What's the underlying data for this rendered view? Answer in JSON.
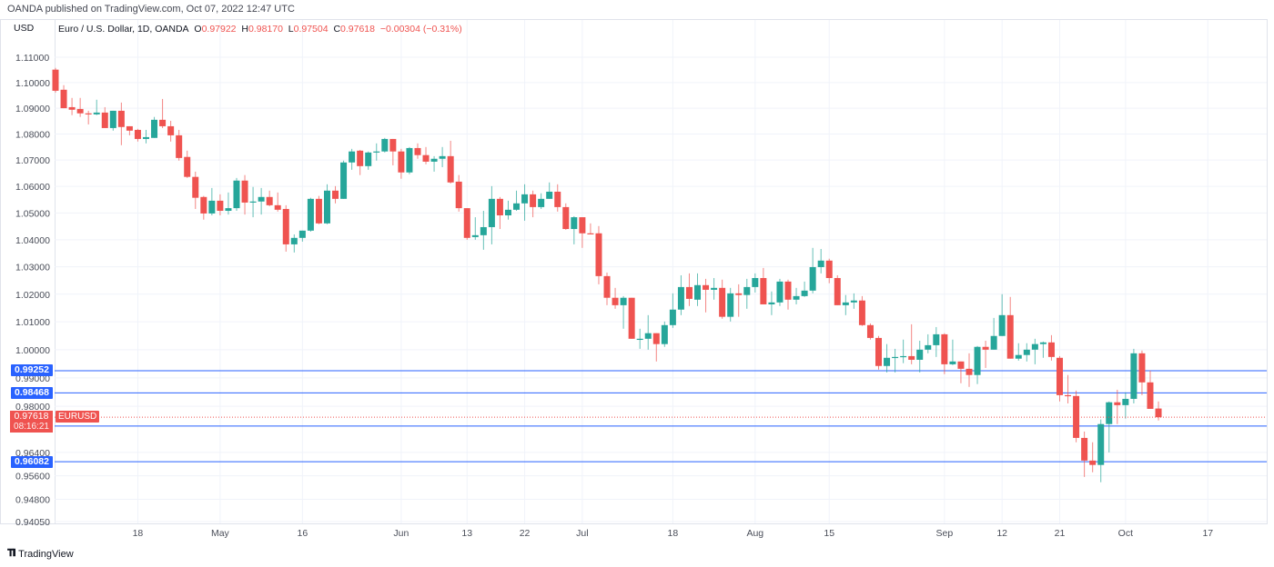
{
  "header": {
    "published": "OANDA published on TradingView.com, Oct 07, 2022 12:47 UTC"
  },
  "legend": {
    "currency": "USD",
    "symbol_desc": "Euro / U.S. Dollar, 1D, OANDA",
    "o_label": "O",
    "o": "0.97922",
    "h_label": "H",
    "h": "0.98170",
    "l_label": "L",
    "l": "0.97504",
    "c_label": "C",
    "c": "0.97618",
    "change": "−0.00304 (−0.31%)"
  },
  "price_lines": [
    {
      "price": 0.99252,
      "label": "0.99252"
    },
    {
      "price": 0.98468,
      "label": "0.98468"
    },
    {
      "price": 0.97313,
      "label": "0.97313"
    },
    {
      "price": 0.96082,
      "label": "0.96082"
    }
  ],
  "current": {
    "price": 0.97618,
    "label": "0.97618",
    "countdown": "08:16:21",
    "symbol": "EURUSD"
  },
  "footer": {
    "brand": "TradingView"
  },
  "colors": {
    "up": "#26a69a",
    "down": "#ef5350",
    "line": "#2962ff"
  },
  "chart_data": {
    "type": "candlestick",
    "title": "Euro / U.S. Dollar, 1D, OANDA",
    "scale": "log",
    "ylim": [
      0.9405,
      1.11
    ],
    "y_ticks": [
      "1.11000",
      "1.10000",
      "1.09000",
      "1.08000",
      "1.07000",
      "1.06000",
      "1.05000",
      "1.04000",
      "1.03000",
      "1.02000",
      "1.01000",
      "1.00000",
      "0.99000",
      "0.98000",
      "0.96400",
      "0.95600",
      "0.94800",
      "0.94050"
    ],
    "x_ticks": [
      {
        "label": "18",
        "index": 11
      },
      {
        "label": "May",
        "index": 21
      },
      {
        "label": "16",
        "index": 31
      },
      {
        "label": "Jun",
        "index": 43
      },
      {
        "label": "13",
        "index": 51
      },
      {
        "label": "22",
        "index": 58
      },
      {
        "label": "Jul",
        "index": 65
      },
      {
        "label": "18",
        "index": 76
      },
      {
        "label": "Aug",
        "index": 86
      },
      {
        "label": "15",
        "index": 95
      },
      {
        "label": "Sep",
        "index": 109
      },
      {
        "label": "12",
        "index": 116
      },
      {
        "label": "21",
        "index": 123
      },
      {
        "label": "Oct",
        "index": 131
      },
      {
        "label": "17",
        "index": 141
      }
    ],
    "x_range": [
      1,
      148
    ],
    "ohlc_order": [
      "open",
      "high",
      "low",
      "close"
    ],
    "candles": [
      [
        1.1051,
        1.1058,
        1.0961,
        1.0968
      ],
      [
        1.0972,
        1.099,
        1.09,
        1.09
      ],
      [
        1.0904,
        1.094,
        1.0873,
        1.0894
      ],
      [
        1.0897,
        1.094,
        1.0866,
        1.088
      ],
      [
        1.088,
        1.089,
        1.0837,
        1.0876
      ],
      [
        1.0876,
        1.0933,
        1.0873,
        1.0883
      ],
      [
        1.0883,
        1.0904,
        1.0823,
        1.0823
      ],
      [
        1.0823,
        1.089,
        1.0813,
        1.089
      ],
      [
        1.089,
        1.0922,
        1.0757,
        1.0827
      ],
      [
        1.083,
        1.083,
        1.0795,
        1.0813
      ],
      [
        1.0816,
        1.082,
        1.0771,
        1.0781
      ],
      [
        1.0781,
        1.0816,
        1.0764,
        1.0788
      ],
      [
        1.0785,
        1.0866,
        1.0785,
        1.0855
      ],
      [
        1.0855,
        1.0936,
        1.0823,
        1.083
      ],
      [
        1.083,
        1.0851,
        1.0771,
        1.0795
      ],
      [
        1.0795,
        1.0816,
        1.0698,
        1.0708
      ],
      [
        1.0712,
        1.0736,
        1.0632,
        1.0636
      ],
      [
        1.0636,
        1.0656,
        1.0515,
        1.0557
      ],
      [
        1.056,
        1.0564,
        1.0475,
        1.0498
      ],
      [
        1.0498,
        1.0594,
        1.0491,
        1.0546
      ],
      [
        1.0546,
        1.057,
        1.0491,
        1.0508
      ],
      [
        1.0508,
        1.0577,
        1.0494,
        1.0518
      ],
      [
        1.0518,
        1.0632,
        1.0508,
        1.0622
      ],
      [
        1.0622,
        1.0643,
        1.0494,
        1.0539
      ],
      [
        1.0539,
        1.0598,
        1.0484,
        1.0543
      ],
      [
        1.0543,
        1.0594,
        1.0494,
        1.056
      ],
      [
        1.056,
        1.0584,
        1.0525,
        1.0529
      ],
      [
        1.0529,
        1.0577,
        1.0505,
        1.0512
      ],
      [
        1.0515,
        1.0529,
        1.0356,
        1.0383
      ],
      [
        1.0383,
        1.042,
        1.0353,
        1.0407
      ],
      [
        1.0407,
        1.0434,
        1.0393,
        1.0434
      ],
      [
        1.0434,
        1.0557,
        1.043,
        1.0553
      ],
      [
        1.0553,
        1.0564,
        1.0458,
        1.0461
      ],
      [
        1.0461,
        1.0608,
        1.0458,
        1.0584
      ],
      [
        1.0584,
        1.0601,
        1.0536,
        1.0553
      ],
      [
        1.0553,
        1.0698,
        1.0553,
        1.0691
      ],
      [
        1.0691,
        1.0743,
        1.0663,
        1.0733
      ],
      [
        1.0736,
        1.0739,
        1.0643,
        1.0677
      ],
      [
        1.0677,
        1.0733,
        1.0663,
        1.0729
      ],
      [
        1.0729,
        1.0764,
        1.0698,
        1.0733
      ],
      [
        1.0733,
        1.0785,
        1.0729,
        1.0781
      ],
      [
        1.0781,
        1.0781,
        1.068,
        1.0733
      ],
      [
        1.0733,
        1.0743,
        1.0629,
        1.0653
      ],
      [
        1.0653,
        1.075,
        1.0646,
        1.0746
      ],
      [
        1.0746,
        1.0764,
        1.0705,
        1.0719
      ],
      [
        1.0719,
        1.075,
        1.0684,
        1.0694
      ],
      [
        1.0694,
        1.0715,
        1.0656,
        1.0705
      ],
      [
        1.0705,
        1.075,
        1.0673,
        1.0715
      ],
      [
        1.0715,
        1.0774,
        1.0611,
        1.0615
      ],
      [
        1.0618,
        1.0643,
        1.0505,
        1.0518
      ],
      [
        1.0518,
        1.0518,
        1.04,
        1.0407
      ],
      [
        1.041,
        1.0484,
        1.04,
        1.0417
      ],
      [
        1.0417,
        1.0508,
        1.0363,
        1.0447
      ],
      [
        1.0447,
        1.0601,
        1.0383,
        1.0553
      ],
      [
        1.0553,
        1.056,
        1.044,
        1.0491
      ],
      [
        1.0491,
        1.0546,
        1.0475,
        1.0512
      ],
      [
        1.0512,
        1.0584,
        1.0508,
        1.0536
      ],
      [
        1.0536,
        1.0608,
        1.0471,
        1.057
      ],
      [
        1.057,
        1.0584,
        1.0484,
        1.0522
      ],
      [
        1.0522,
        1.0574,
        1.0515,
        1.0553
      ],
      [
        1.0553,
        1.0615,
        1.0553,
        1.058
      ],
      [
        1.058,
        1.0608,
        1.0505,
        1.0522
      ],
      [
        1.0522,
        1.0536,
        1.0437,
        1.044
      ],
      [
        1.044,
        1.0488,
        1.0383,
        1.0484
      ],
      [
        1.0484,
        1.0484,
        1.037,
        1.0424
      ],
      [
        1.0424,
        1.0461,
        1.042,
        1.042
      ],
      [
        1.0424,
        1.0451,
        1.0236,
        1.0266
      ],
      [
        1.0266,
        1.0279,
        1.016,
        1.0187
      ],
      [
        1.0187,
        1.0223,
        1.0147,
        1.016
      ],
      [
        1.016,
        1.0193,
        1.0075,
        1.0187
      ],
      [
        1.0187,
        1.0187,
        1.0039,
        1.0039
      ],
      [
        1.0039,
        1.0075,
        1.0003,
        1.0039
      ],
      [
        1.0039,
        1.0124,
        1.0,
        1.0059
      ],
      [
        1.0059,
        1.0059,
        0.9958,
        1.002
      ],
      [
        1.002,
        1.0101,
        1.001,
        1.0088
      ],
      [
        1.0088,
        1.0203,
        1.0078,
        1.0144
      ],
      [
        1.0144,
        1.0269,
        1.0124,
        1.0226
      ],
      [
        1.0226,
        1.0276,
        1.0157,
        1.0183
      ],
      [
        1.018,
        1.0276,
        1.0157,
        1.0233
      ],
      [
        1.0233,
        1.0256,
        1.0134,
        1.0216
      ],
      [
        1.0216,
        1.0259,
        1.018,
        1.0223
      ],
      [
        1.0223,
        1.0253,
        1.0111,
        1.0118
      ],
      [
        1.0118,
        1.0223,
        1.0101,
        1.0203
      ],
      [
        1.0203,
        1.0236,
        1.0118,
        1.0197
      ],
      [
        1.0197,
        1.0256,
        1.0147,
        1.0226
      ],
      [
        1.0226,
        1.0276,
        1.0206,
        1.0259
      ],
      [
        1.0259,
        1.0296,
        1.0163,
        1.0163
      ],
      [
        1.0163,
        1.021,
        1.0124,
        1.017
      ],
      [
        1.017,
        1.0256,
        1.0157,
        1.0246
      ],
      [
        1.0246,
        1.0253,
        1.0144,
        1.018
      ],
      [
        1.018,
        1.0223,
        1.0163,
        1.0193
      ],
      [
        1.0193,
        1.0246,
        1.019,
        1.0213
      ],
      [
        1.0213,
        1.037,
        1.0203,
        1.0299
      ],
      [
        1.0299,
        1.0366,
        1.0276,
        1.0323
      ],
      [
        1.0323,
        1.033,
        1.024,
        1.0259
      ],
      [
        1.0259,
        1.0269,
        1.016,
        1.016
      ],
      [
        1.016,
        1.0197,
        1.0124,
        1.017
      ],
      [
        1.017,
        1.0203,
        1.0147,
        1.0177
      ],
      [
        1.0177,
        1.0193,
        1.0085,
        1.0088
      ],
      [
        1.0088,
        1.0094,
        1.0036,
        1.0042
      ],
      [
        1.0042,
        1.0049,
        0.9929,
        0.9942
      ],
      [
        0.9942,
        1.002,
        0.9919,
        0.9971
      ],
      [
        0.9971,
        1.0003,
        0.9919,
        0.9974
      ],
      [
        0.9974,
        1.0036,
        0.9952,
        0.9977
      ],
      [
        0.9977,
        1.0091,
        0.9948,
        0.9964
      ],
      [
        0.9964,
        1.0032,
        0.9919,
        1.0
      ],
      [
        1.0,
        1.0055,
        0.9987,
        1.0016
      ],
      [
        1.0016,
        1.0081,
        0.9974,
        1.0055
      ],
      [
        1.0055,
        1.0059,
        0.9913,
        0.9948
      ],
      [
        0.9948,
        1.0036,
        0.9945,
        0.9958
      ],
      [
        0.9958,
        0.9958,
        0.9881,
        0.9932
      ],
      [
        0.9932,
        0.9987,
        0.9868,
        0.991
      ],
      [
        0.991,
        1.0013,
        0.9878,
        1.001
      ],
      [
        1.001,
        1.0032,
        0.9935,
        1.0
      ],
      [
        1.0,
        1.0114,
        1.0,
        1.0049
      ],
      [
        1.0049,
        1.02,
        1.0049,
        1.0124
      ],
      [
        1.0124,
        1.019,
        0.9968,
        0.9968
      ],
      [
        0.9968,
        1.0023,
        0.9961,
        0.9981
      ],
      [
        0.9981,
        1.0023,
        0.9958,
        1.0
      ],
      [
        1.0,
        1.0039,
        0.9948,
        1.002
      ],
      [
        1.002,
        1.0029,
        0.9971,
        1.0026
      ],
      [
        1.0026,
        1.0052,
        0.9961,
        0.9974
      ],
      [
        0.9971,
        0.9977,
        0.9817,
        0.9839
      ],
      [
        0.9839,
        0.991,
        0.981,
        0.9836
      ],
      [
        0.9836,
        0.9855,
        0.9675,
        0.969
      ],
      [
        0.969,
        0.9712,
        0.9556,
        0.9612
      ],
      [
        0.9612,
        0.9675,
        0.9572,
        0.9597
      ],
      [
        0.9597,
        0.9754,
        0.9538,
        0.9738
      ],
      [
        0.9738,
        0.9817,
        0.964,
        0.9814
      ],
      [
        0.9814,
        0.9858,
        0.9738,
        0.9804
      ],
      [
        0.9804,
        0.9849,
        0.9757,
        0.9826
      ],
      [
        0.9826,
        1.0003,
        0.981,
        0.9987
      ],
      [
        0.9987,
        0.9997,
        0.9839,
        0.9884
      ],
      [
        0.9884,
        0.9926,
        0.9791,
        0.9791
      ],
      [
        0.97922,
        0.9817,
        0.97504,
        0.97618
      ]
    ]
  }
}
